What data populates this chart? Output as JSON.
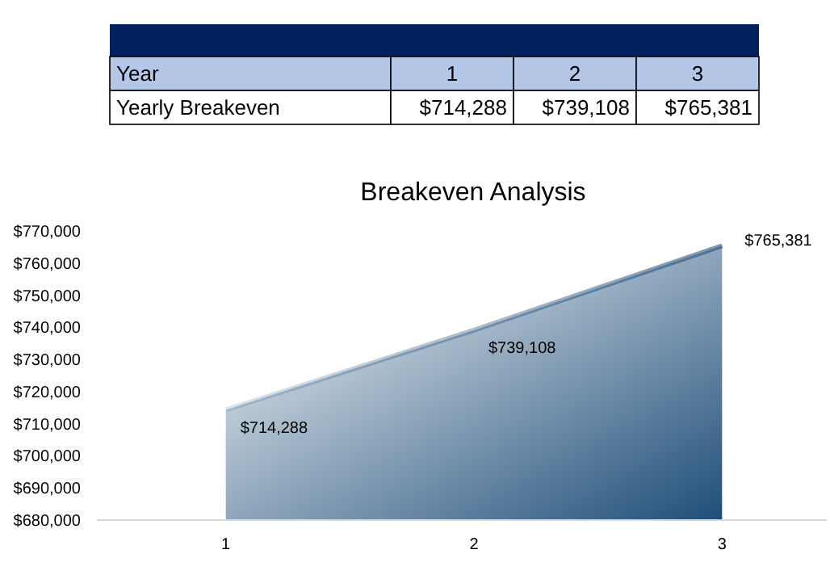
{
  "chart_data": {
    "type": "area",
    "title": "Breakeven Analysis",
    "categories": [
      "1",
      "2",
      "3"
    ],
    "series": [
      {
        "color": "#1f4e79",
        "values": [
          714288,
          739108,
          765381
        ],
        "value_labels": [
          "$714,288",
          "$739,108",
          "$765,381"
        ]
      }
    ],
    "ylim": [
      680000,
      770000
    ],
    "yticks": [
      {
        "value": 680000,
        "label": "$680,000"
      },
      {
        "value": 690000,
        "label": "$690,000"
      },
      {
        "value": 700000,
        "label": "$700,000"
      },
      {
        "value": 710000,
        "label": "$710,000"
      },
      {
        "value": 720000,
        "label": "$720,000"
      },
      {
        "value": 730000,
        "label": "$730,000"
      },
      {
        "value": 740000,
        "label": "$740,000"
      },
      {
        "value": 750000,
        "label": "$750,000"
      },
      {
        "value": 760000,
        "label": "$760,000"
      },
      {
        "value": 770000,
        "label": "$770,000"
      }
    ],
    "annotations": [
      "Year",
      "Yearly Breakeven"
    ]
  }
}
